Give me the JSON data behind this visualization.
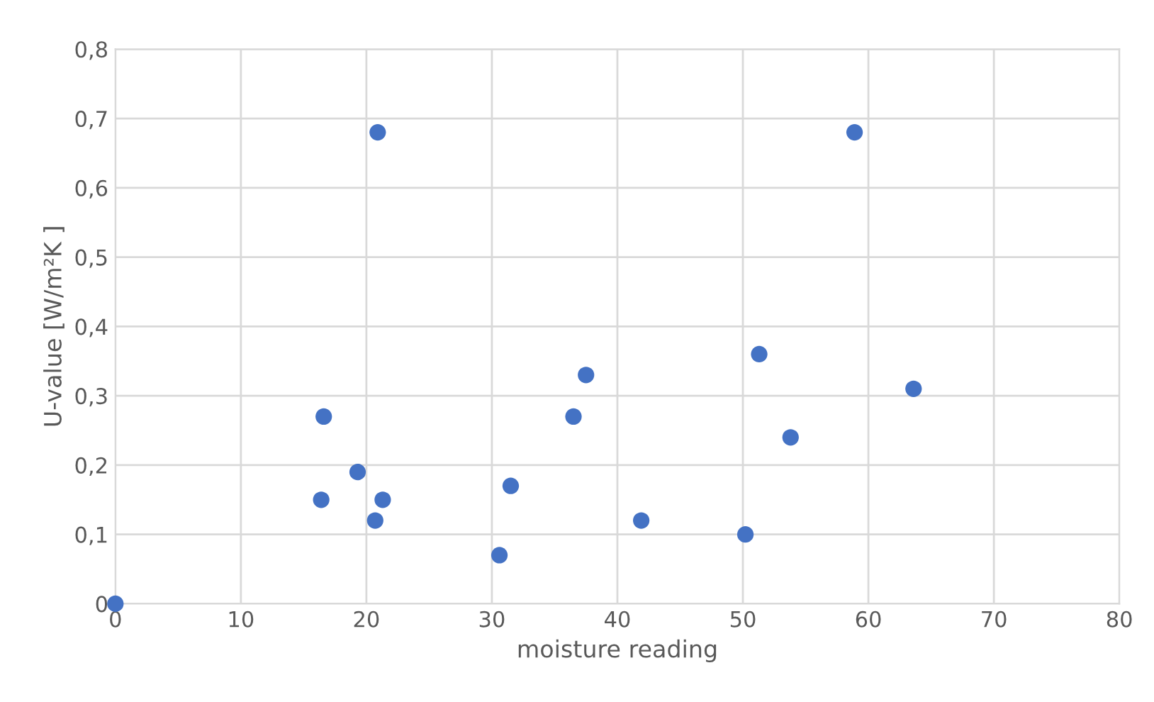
{
  "chart_data": {
    "type": "scatter",
    "xlabel": "moisture reading",
    "ylabel": "U-value [W/m²K ]",
    "x": [
      0,
      20.9,
      16.6,
      16.4,
      19.3,
      21.3,
      20.7,
      30.6,
      31.5,
      36.5,
      37.5,
      41.9,
      50.2,
      51.3,
      53.8,
      58.9,
      63.6
    ],
    "series": [
      {
        "color": "#4472c4",
        "values": [
          0,
          0.68,
          0.27,
          0.15,
          0.19,
          0.15,
          0.12,
          0.07,
          0.17,
          0.27,
          0.33,
          0.12,
          0.1,
          0.36,
          0.24,
          0.68,
          0.31
        ]
      }
    ],
    "xlim": [
      0,
      80
    ],
    "xticks": [
      0,
      10,
      20,
      30,
      40,
      50,
      60,
      70,
      80
    ],
    "ylim": [
      0,
      0.8
    ],
    "yticks": [
      {
        "value": 0,
        "label": "0"
      },
      {
        "value": 0.1,
        "label": "0,1"
      },
      {
        "value": 0.2,
        "label": "0,2"
      },
      {
        "value": 0.3,
        "label": "0,3"
      },
      {
        "value": 0.4,
        "label": "0,4"
      },
      {
        "value": 0.5,
        "label": "0,5"
      },
      {
        "value": 0.6,
        "label": "0,6"
      },
      {
        "value": 0.7,
        "label": "0,7"
      },
      {
        "value": 0.8,
        "label": "0,8"
      }
    ],
    "grid": true,
    "marker": "circle"
  }
}
